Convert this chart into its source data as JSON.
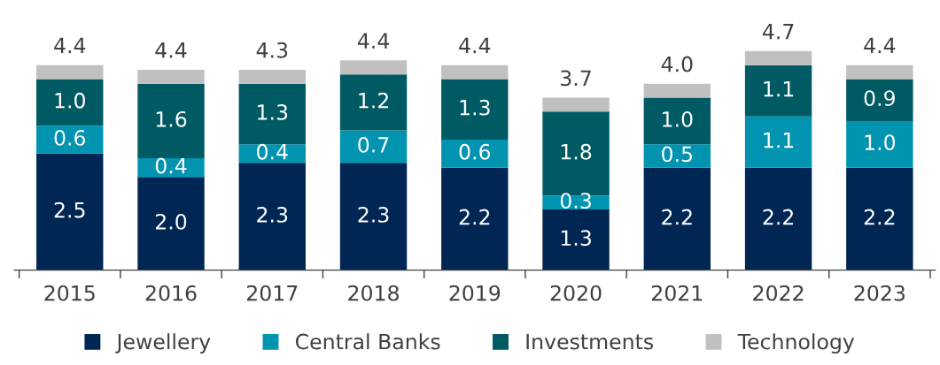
{
  "chart_data": {
    "type": "bar",
    "stacked": true,
    "categories": [
      "2015",
      "2016",
      "2017",
      "2018",
      "2019",
      "2020",
      "2021",
      "2022",
      "2023"
    ],
    "series": [
      {
        "name": "Jewellery",
        "color": "#002654",
        "values": [
          2.5,
          2.0,
          2.3,
          2.3,
          2.2,
          1.3,
          2.2,
          2.2,
          2.2
        ],
        "value_labels": [
          "2.5",
          "2.0",
          "2.3",
          "2.3",
          "2.2",
          "1.3",
          "2.2",
          "2.2",
          "2.2"
        ]
      },
      {
        "name": "Central Banks",
        "color": "#0094b0",
        "values": [
          0.6,
          0.4,
          0.4,
          0.7,
          0.6,
          0.3,
          0.5,
          1.1,
          1.0
        ],
        "value_labels": [
          "0.6",
          "0.4",
          "0.4",
          "0.7",
          "0.6",
          "0.3",
          "0.5",
          "1.1",
          "1.0"
        ]
      },
      {
        "name": "Investments",
        "color": "#005a64",
        "values": [
          1.0,
          1.6,
          1.3,
          1.2,
          1.3,
          1.8,
          1.0,
          1.1,
          0.9
        ],
        "value_labels": [
          "1.0",
          "1.6",
          "1.3",
          "1.2",
          "1.3",
          "1.8",
          "1.0",
          "1.1",
          "0.9"
        ]
      },
      {
        "name": "Technology",
        "color": "#c0c0c0",
        "values": [
          0.3,
          0.3,
          0.3,
          0.3,
          0.3,
          0.3,
          0.3,
          0.3,
          0.3
        ]
      }
    ],
    "totals": [
      "4.4",
      "4.4",
      "4.3",
      "4.4",
      "4.4",
      "3.7",
      "4.0",
      "4.7",
      "4.4"
    ],
    "legend": "bottom",
    "grid": false
  }
}
